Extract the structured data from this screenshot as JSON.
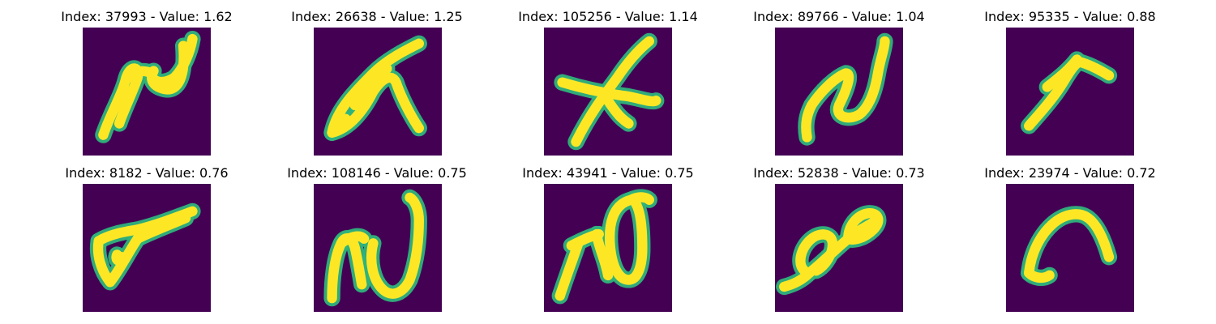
{
  "colors": {
    "background": "#440154",
    "glow": "#2fb47c",
    "stroke": "#fde725"
  },
  "tiles": [
    {
      "title": "Index: 37993 - Value: 1.62",
      "glyph": "stroke-n-loop"
    },
    {
      "title": "Index: 26638 - Value: 1.25",
      "glyph": "stroke-fish"
    },
    {
      "title": "Index: 105256 - Value: 1.14",
      "glyph": "stroke-cross"
    },
    {
      "title": "Index: 89766 - Value: 1.04",
      "glyph": "stroke-n"
    },
    {
      "title": "Index: 95335 - Value: 0.88",
      "glyph": "stroke-check"
    },
    {
      "title": "Index: 8182 - Value: 0.76",
      "glyph": "stroke-flag"
    },
    {
      "title": "Index: 108146 - Value: 0.75",
      "glyph": "stroke-ru"
    },
    {
      "title": "Index: 43941 - Value: 0.75",
      "glyph": "stroke-ro"
    },
    {
      "title": "Index: 52838 - Value: 0.73",
      "glyph": "stroke-infinity"
    },
    {
      "title": "Index: 23974 - Value: 0.72",
      "glyph": "stroke-arch"
    }
  ]
}
